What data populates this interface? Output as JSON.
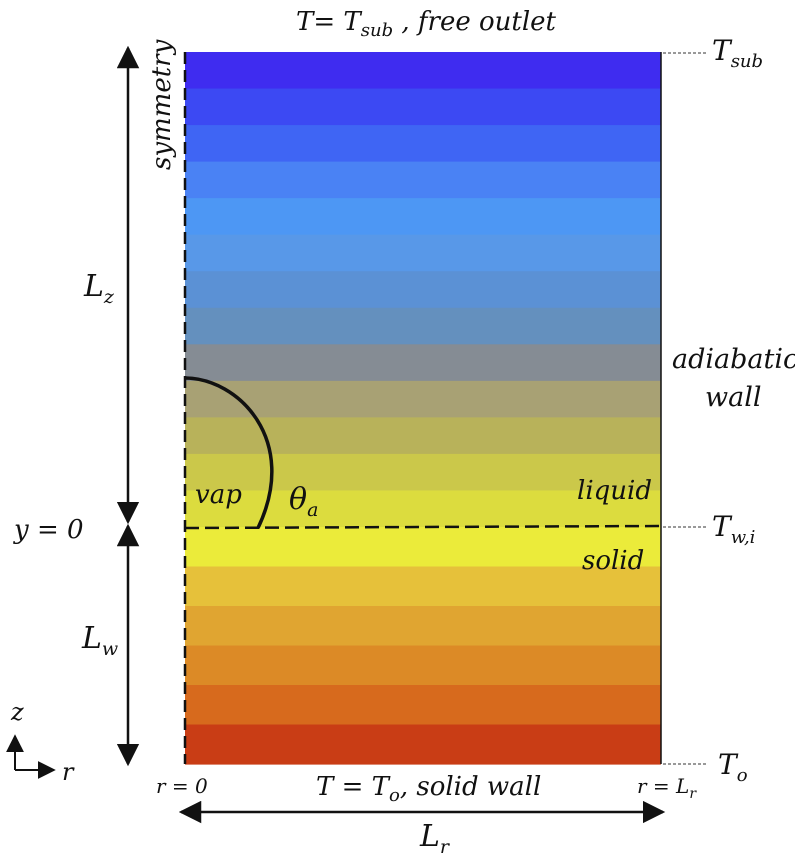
{
  "labels": {
    "top": {
      "main": "T= T",
      "sub": "sub",
      "rest": " , free outlet"
    },
    "bottom": {
      "main": "T = T",
      "sub": "o",
      "rest": ", solid wall"
    },
    "right_top": {
      "main": "T",
      "sub": "sub"
    },
    "right_interface": {
      "main": "T",
      "sub": "w,i"
    },
    "right_bottom": {
      "main": "T",
      "sub": "o"
    },
    "symmetry": "symmetry",
    "lz": {
      "main": "L",
      "sub": "z"
    },
    "lw": {
      "main": "L",
      "sub": "w"
    },
    "lr": {
      "main": "L",
      "sub": "r"
    },
    "y0": "y = 0",
    "adiabatic_line1": "adiabatic",
    "adiabatic_line2": "wall",
    "liquid": "liquid",
    "solid": "solid",
    "vap": "vap",
    "theta": {
      "main": "θ",
      "sub": "a"
    },
    "r0": "r = 0",
    "rlr": {
      "main": "r = L",
      "sub": "r"
    },
    "axis_z": "z",
    "axis_r": "r"
  },
  "colors": {
    "bands_liquid": [
      "#3f2cf0",
      "#3c49f3",
      "#3f65f4",
      "#4a82f4",
      "#4d97f4",
      "#5898e8",
      "#5b91d5",
      "#6490be",
      "#858c94",
      "#a8a174",
      "#b8b25a",
      "#cbc84a",
      "#dcdc3e"
    ],
    "bands_solid": [
      "#ebeb3a",
      "#e6c13a",
      "#e0a531",
      "#dc8a26",
      "#d76a1d",
      "#c93d15"
    ],
    "outline": "#111111"
  }
}
